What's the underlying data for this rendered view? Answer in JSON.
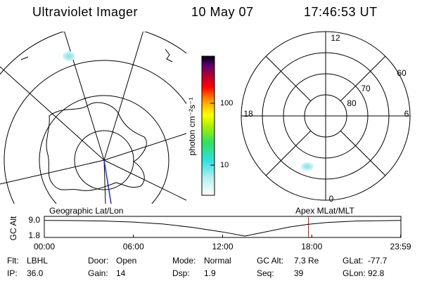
{
  "header": {
    "title": "Ultraviolet Imager",
    "date": "10 May 07",
    "time": "17:46:53 UT"
  },
  "colorbar": {
    "label": "photon cm⁻²s⁻¹",
    "ticks": [
      100,
      10
    ]
  },
  "polar_plot": {
    "mlt_labels": [
      "12",
      "18",
      "6",
      "0"
    ],
    "lat_labels": [
      "60",
      "70",
      "80"
    ]
  },
  "orbit_plot": {
    "left_title": "Geographic Lat/Lon",
    "right_title": "Apex  MLat/MLT",
    "ylabel": "GC Alt",
    "yticks": [
      {
        "value": 9.0,
        "label": "9.0"
      },
      {
        "value": 1.8,
        "label": "1.8"
      }
    ],
    "xticks": [
      {
        "value": 0,
        "label": "00:00"
      },
      {
        "value": 6,
        "label": "06:00"
      },
      {
        "value": 12,
        "label": "12:00"
      },
      {
        "value": 18,
        "label": "18:00"
      },
      {
        "value": 23.98,
        "label": "23:59"
      }
    ],
    "hours": [
      0,
      2,
      4,
      6,
      8,
      10,
      12,
      13.5,
      15,
      16.5,
      17.78,
      19,
      21,
      23.98
    ],
    "altitude": [
      9.1,
      9.0,
      8.8,
      8.3,
      7.4,
      5.8,
      3.7,
      1.8,
      3.9,
      6.0,
      7.3,
      8.1,
      8.8,
      9.1
    ],
    "current_hour": 17.78
  },
  "status": [
    [
      {
        "label": "Flt:",
        "value": "LBHL"
      },
      {
        "label": "Door:",
        "value": "Open"
      },
      {
        "label": "Mode:",
        "value": "Normal"
      },
      {
        "label": "GC Alt:",
        "value": "7.3 Re"
      },
      {
        "label": "GLat:",
        "value": "-77.7"
      }
    ],
    [
      {
        "label": "IP:",
        "value": "36.0"
      },
      {
        "label": "Gain:",
        "value": "14"
      },
      {
        "label": "Dsp:",
        "value": "1.9"
      },
      {
        "label": "Seq:",
        "value": "39"
      },
      {
        "label": "GLon:",
        "value": "92.8"
      }
    ]
  ]
}
